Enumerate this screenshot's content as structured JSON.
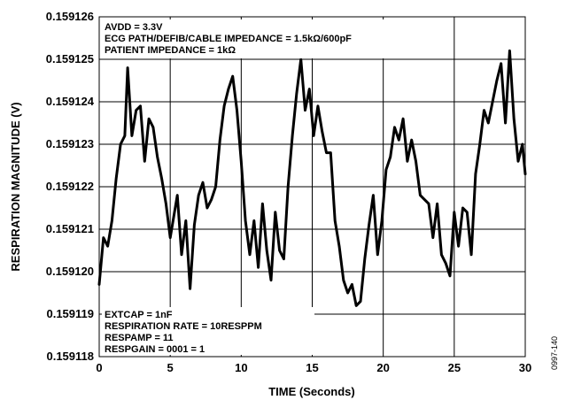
{
  "chart_data": {
    "type": "line",
    "title": "",
    "xlabel": "TIME (Seconds)",
    "ylabel": "RESPIRATION MAGNITUDE (V)",
    "xlim": [
      0,
      30
    ],
    "ylim": [
      0.159118,
      0.159126
    ],
    "x_ticks": [
      "0",
      "5",
      "10",
      "15",
      "20",
      "25",
      "30"
    ],
    "y_ticks": [
      "0.159118",
      "0.159119",
      "0.159120",
      "0.159121",
      "0.159122",
      "0.159123",
      "0.159124",
      "0.159125",
      "0.159126"
    ],
    "grid": true,
    "color": "#000000",
    "annotations_top": [
      "AVDD = 3.3V",
      "ECG PATH/DEFIB/CABLE  IMPEDANCE = 1.5kΩ/600pF",
      "PATIENT IMPEDANCE = 1kΩ"
    ],
    "annotations_bottom": [
      "EXTCAP = 1nF",
      "RESPIRATION RATE = 10RESPPM",
      "RESPAMP = 11",
      "RESPGAIN = 0001 = 1"
    ],
    "figure_id": "0997-140",
    "series": [
      {
        "x": [
          0.0,
          0.3,
          0.6,
          0.9,
          1.2,
          1.5,
          1.8,
          2.0,
          2.3,
          2.6,
          2.9,
          3.2,
          3.5,
          3.8,
          4.1,
          4.4,
          4.7,
          5.0,
          5.2,
          5.5,
          5.8,
          6.1,
          6.4,
          6.7,
          7.0,
          7.3,
          7.6,
          7.9,
          8.2,
          8.5,
          8.8,
          9.1,
          9.4,
          9.7,
          10.0,
          10.3,
          10.6,
          10.9,
          11.2,
          11.5,
          11.8,
          12.1,
          12.4,
          12.7,
          13.0,
          13.3,
          13.6,
          13.9,
          14.2,
          14.5,
          14.8,
          15.1,
          15.4,
          15.7,
          16.0,
          16.3,
          16.6,
          16.9,
          17.2,
          17.5,
          17.8,
          18.1,
          18.4,
          18.7,
          19.0,
          19.3,
          19.6,
          19.9,
          20.2,
          20.5,
          20.8,
          21.1,
          21.4,
          21.7,
          22.0,
          22.3,
          22.6,
          22.9,
          23.2,
          23.5,
          23.8,
          24.1,
          24.4,
          24.7,
          25.0,
          25.3,
          25.6,
          25.9,
          26.2,
          26.5,
          26.8,
          27.1,
          27.4,
          27.7,
          28.0,
          28.3,
          28.6,
          28.9,
          29.2,
          29.5,
          29.8,
          30.0
        ],
        "values": [
          0.1591197,
          0.1591208,
          0.1591206,
          0.1591212,
          0.1591222,
          0.159123,
          0.1591232,
          0.1591248,
          0.1591232,
          0.1591238,
          0.1591239,
          0.1591226,
          0.1591236,
          0.1591234,
          0.1591227,
          0.1591222,
          0.1591216,
          0.1591208,
          0.1591212,
          0.1591218,
          0.1591204,
          0.1591212,
          0.1591196,
          0.1591211,
          0.1591218,
          0.1591221,
          0.1591215,
          0.1591217,
          0.159122,
          0.1591231,
          0.1591239,
          0.1591243,
          0.1591246,
          0.1591238,
          0.1591226,
          0.1591212,
          0.1591204,
          0.1591212,
          0.1591201,
          0.1591216,
          0.1591205,
          0.1591198,
          0.1591214,
          0.1591205,
          0.1591203,
          0.159122,
          0.1591232,
          0.1591242,
          0.159125,
          0.1591238,
          0.1591243,
          0.1591232,
          0.1591239,
          0.1591233,
          0.1591228,
          0.1591228,
          0.1591212,
          0.1591206,
          0.1591198,
          0.1591195,
          0.1591197,
          0.1591192,
          0.1591193,
          0.1591203,
          0.1591211,
          0.1591218,
          0.1591204,
          0.1591212,
          0.1591224,
          0.1591227,
          0.1591234,
          0.1591231,
          0.1591236,
          0.1591226,
          0.1591231,
          0.1591226,
          0.1591218,
          0.1591217,
          0.1591216,
          0.1591208,
          0.1591216,
          0.1591204,
          0.1591202,
          0.1591199,
          0.1591214,
          0.1591206,
          0.1591215,
          0.1591214,
          0.1591204,
          0.1591223,
          0.159123,
          0.1591238,
          0.1591235,
          0.159124,
          0.1591245,
          0.1591249,
          0.1591235,
          0.1591252,
          0.1591236,
          0.1591226,
          0.159123,
          0.1591223
        ]
      }
    ]
  }
}
